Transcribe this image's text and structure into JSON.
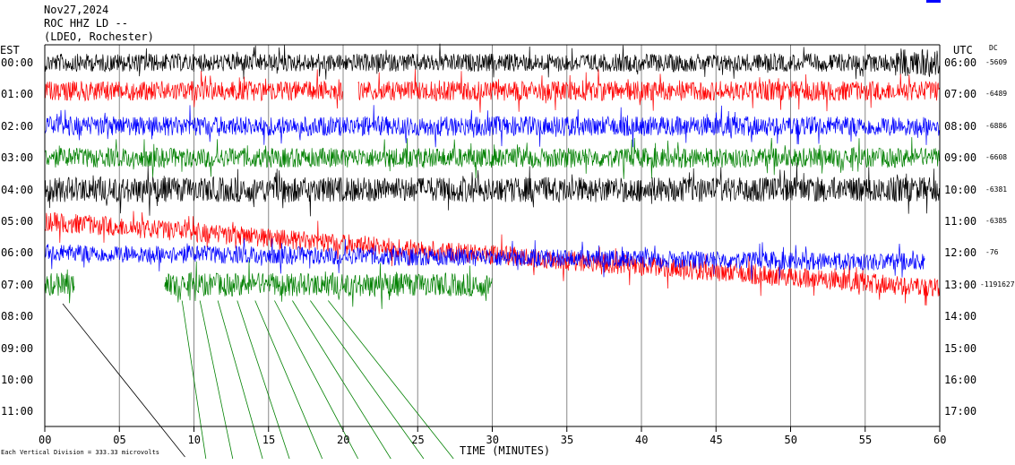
{
  "header": {
    "date": "Nov27,2024",
    "station": "ROC HHZ LD --",
    "network": "(LDEO, Rochester)"
  },
  "footer": {
    "scale_note": "Each Vertical Division = 333.33 microvolts"
  },
  "colors": {
    "trace_cycle": [
      "#000000",
      "#ff0000",
      "#0000ff",
      "#008000"
    ],
    "grid": "#000000",
    "legend_swatch": "#0000ff"
  },
  "chart_data": {
    "type": "line",
    "title": "",
    "xlabel": "TIME (MINUTES)",
    "ylabel_left": "EST",
    "ylabel_right": "UTC",
    "dc_label": "DC",
    "xlim": [
      0,
      60
    ],
    "x_ticks": [
      "00",
      "05",
      "10",
      "15",
      "20",
      "25",
      "30",
      "35",
      "40",
      "45",
      "50",
      "55",
      "60"
    ],
    "grid": true,
    "rows": [
      {
        "est": "00:00",
        "utc": "06:00",
        "dc": "-5609",
        "color": "black",
        "start_min": 0,
        "end_min": 60,
        "amplitude": 10,
        "drift": 0,
        "burst": [
          57,
          60,
          1.6
        ]
      },
      {
        "est": "01:00",
        "utc": "07:00",
        "dc": "-6489",
        "color": "red",
        "start_min": 0,
        "end_min": 60,
        "amplitude": 11,
        "drift": -4,
        "gap": [
          20,
          21
        ]
      },
      {
        "est": "02:00",
        "utc": "08:00",
        "dc": "-6886",
        "color": "blue",
        "start_min": 0,
        "end_min": 60,
        "amplitude": 11,
        "drift": 0
      },
      {
        "est": "03:00",
        "utc": "09:00",
        "dc": "-6608",
        "color": "green",
        "start_min": 0,
        "end_min": 60,
        "amplitude": 11,
        "drift": 0
      },
      {
        "est": "04:00",
        "utc": "10:00",
        "dc": "-6381",
        "color": "black",
        "start_min": 0,
        "end_min": 60,
        "amplitude": 14,
        "drift": 0
      },
      {
        "est": "05:00",
        "utc": "11:00",
        "dc": "-6385",
        "color": "red",
        "start_min": 0,
        "end_min": 60,
        "amplitude": 11,
        "drift": 0,
        "slope_to": 7.4
      },
      {
        "est": "06:00",
        "utc": "12:00",
        "dc": "-76",
        "color": "blue",
        "start_min": 0,
        "end_min": 59,
        "amplitude": 10,
        "drift": 0,
        "slope_to": 1
      },
      {
        "est": "07:00",
        "utc": "13:00",
        "dc": "-1191627",
        "color": "green",
        "start_min": 0,
        "end_min": 30,
        "amplitude": 13,
        "drift": 0,
        "gap": [
          2,
          8
        ]
      },
      {
        "est": "08:00",
        "utc": "14:00",
        "dc": "",
        "color": "none"
      },
      {
        "est": "09:00",
        "utc": "15:00",
        "dc": "",
        "color": "none"
      },
      {
        "est": "10:00",
        "utc": "16:00",
        "dc": "",
        "color": "none"
      },
      {
        "est": "11:00",
        "utc": "17:00",
        "dc": "",
        "color": "none"
      }
    ]
  }
}
